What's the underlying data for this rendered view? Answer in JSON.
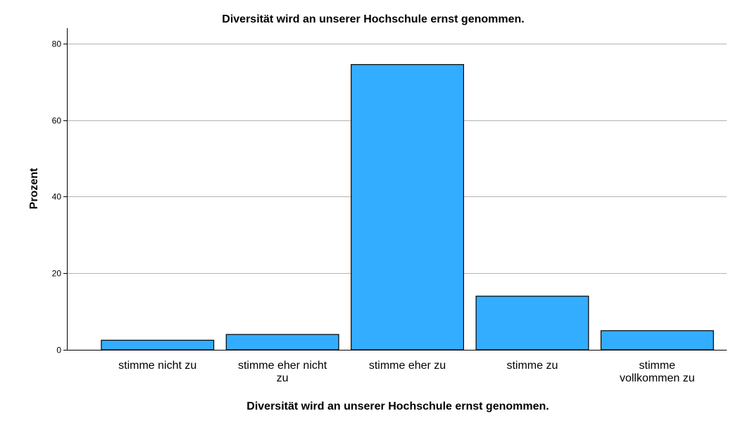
{
  "chart_data": {
    "type": "bar",
    "title": "Diversität wird an unserer Hochschule ernst genommen.",
    "xlabel": "Diversität wird an unserer Hochschule ernst genommen.",
    "ylabel": "Prozent",
    "categories": [
      "stimme nicht zu",
      "stimme eher nicht zu",
      "stimme eher zu",
      "stimme zu",
      "stimme vollkommen zu"
    ],
    "category_lines": [
      [
        "stimme nicht zu"
      ],
      [
        "stimme eher nicht",
        "zu"
      ],
      [
        "stimme eher zu"
      ],
      [
        "stimme zu"
      ],
      [
        "stimme",
        "vollkommen zu"
      ]
    ],
    "values": [
      2.5,
      4.0,
      74.5,
      14.0,
      5.0
    ],
    "ylim": [
      0,
      84
    ],
    "yticks": [
      0,
      20,
      40,
      60,
      80
    ],
    "ytick_labels": [
      "0",
      "20",
      "40",
      "60",
      "80"
    ],
    "grid": true,
    "bar_color": "#33adff",
    "bar_edge_color": "#000000",
    "grid_color": "#b3b3b3"
  }
}
